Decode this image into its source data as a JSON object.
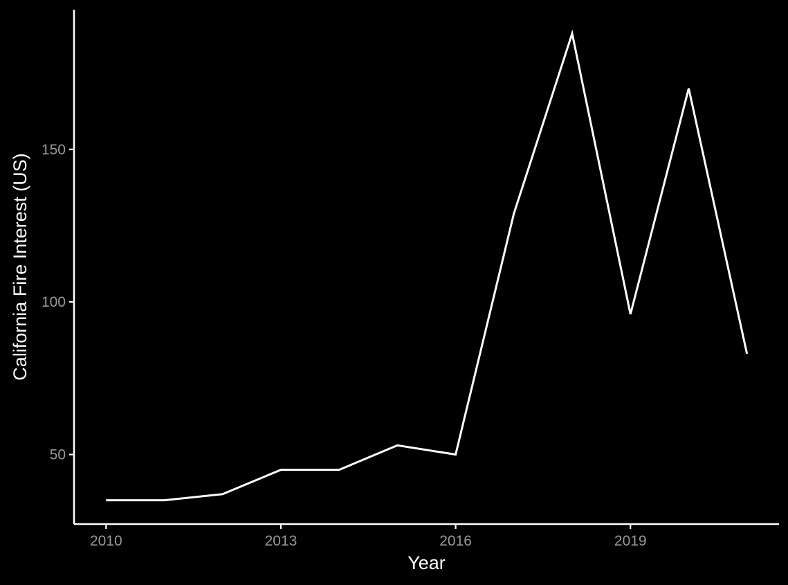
{
  "chart_data": {
    "type": "line",
    "title": "",
    "xlabel": "Year",
    "ylabel": "California Fire Interest (US)",
    "x": [
      2010,
      2011,
      2012,
      2013,
      2014,
      2015,
      2016,
      2017,
      2018,
      2019,
      2020,
      2021
    ],
    "series": [
      {
        "values": [
          35,
          35,
          37,
          45,
          45,
          53,
          50,
          129,
          188,
          96,
          170,
          83
        ]
      }
    ],
    "x_ticks": [
      2010,
      2013,
      2016,
      2019
    ],
    "x_tick_labels": [
      "2010",
      "2013",
      "2016",
      "2019"
    ],
    "y_ticks": [
      50,
      100,
      150
    ],
    "y_tick_labels": [
      "50",
      "100",
      "150"
    ],
    "xlim": [
      2009.45,
      2021.55
    ],
    "ylim": [
      27.2,
      195.8
    ],
    "grid": false,
    "legend": "none",
    "colors": {
      "background": "#000000",
      "line": "#ffffff",
      "axis": "#ffffff",
      "tick_label": "#999999",
      "axis_title": "#ffffff"
    }
  }
}
